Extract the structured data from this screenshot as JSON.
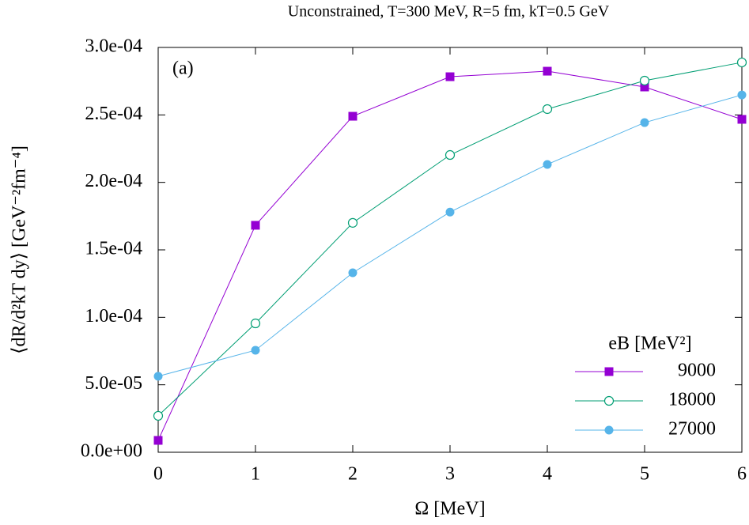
{
  "chart_data": {
    "type": "line",
    "title": "Unconstrained, T=300 MeV, R=5 fm, kT=0.5 GeV",
    "xlabel": "Ω [MeV]",
    "ylabel": "⟨dR/d²kT dy⟩ [GeV⁻²fm⁻⁴]",
    "annotation": "(a)",
    "legend_title": "eB [MeV²]",
    "x": [
      0,
      1,
      2,
      3,
      4,
      5,
      6
    ],
    "xlim": [
      0,
      6
    ],
    "xticks": [
      0,
      1,
      2,
      3,
      4,
      5,
      6
    ],
    "ylim": [
      0,
      0.0003
    ],
    "yticks": [
      {
        "value": 0,
        "label": "0.0e+00"
      },
      {
        "value": 5e-05,
        "label": "5.0e-05"
      },
      {
        "value": 0.0001,
        "label": "1.0e-04"
      },
      {
        "value": 0.00015,
        "label": "1.5e-04"
      },
      {
        "value": 0.0002,
        "label": "2.0e-04"
      },
      {
        "value": 0.00025,
        "label": "2.5e-04"
      },
      {
        "value": 0.0003,
        "label": "3.0e-04"
      }
    ],
    "legend": "lower right",
    "series": [
      {
        "name": "9000",
        "color": "#9400d3",
        "marker": "filled-square",
        "values": [
          8.8e-06,
          0.0001682,
          0.000249,
          0.0002783,
          0.0002824,
          0.0002707,
          0.0002467
        ]
      },
      {
        "name": "18000",
        "color": "#009e73",
        "marker": "open-circle",
        "values": [
          2.7e-05,
          9.55e-05,
          0.00017,
          0.0002203,
          0.0002543,
          0.0002754,
          0.0002889
        ]
      },
      {
        "name": "27000",
        "color": "#56b4e9",
        "marker": "filled-circle",
        "values": [
          5.63e-05,
          7.56e-05,
          0.000133,
          0.000178,
          0.0002133,
          0.0002443,
          0.0002648
        ]
      }
    ]
  }
}
